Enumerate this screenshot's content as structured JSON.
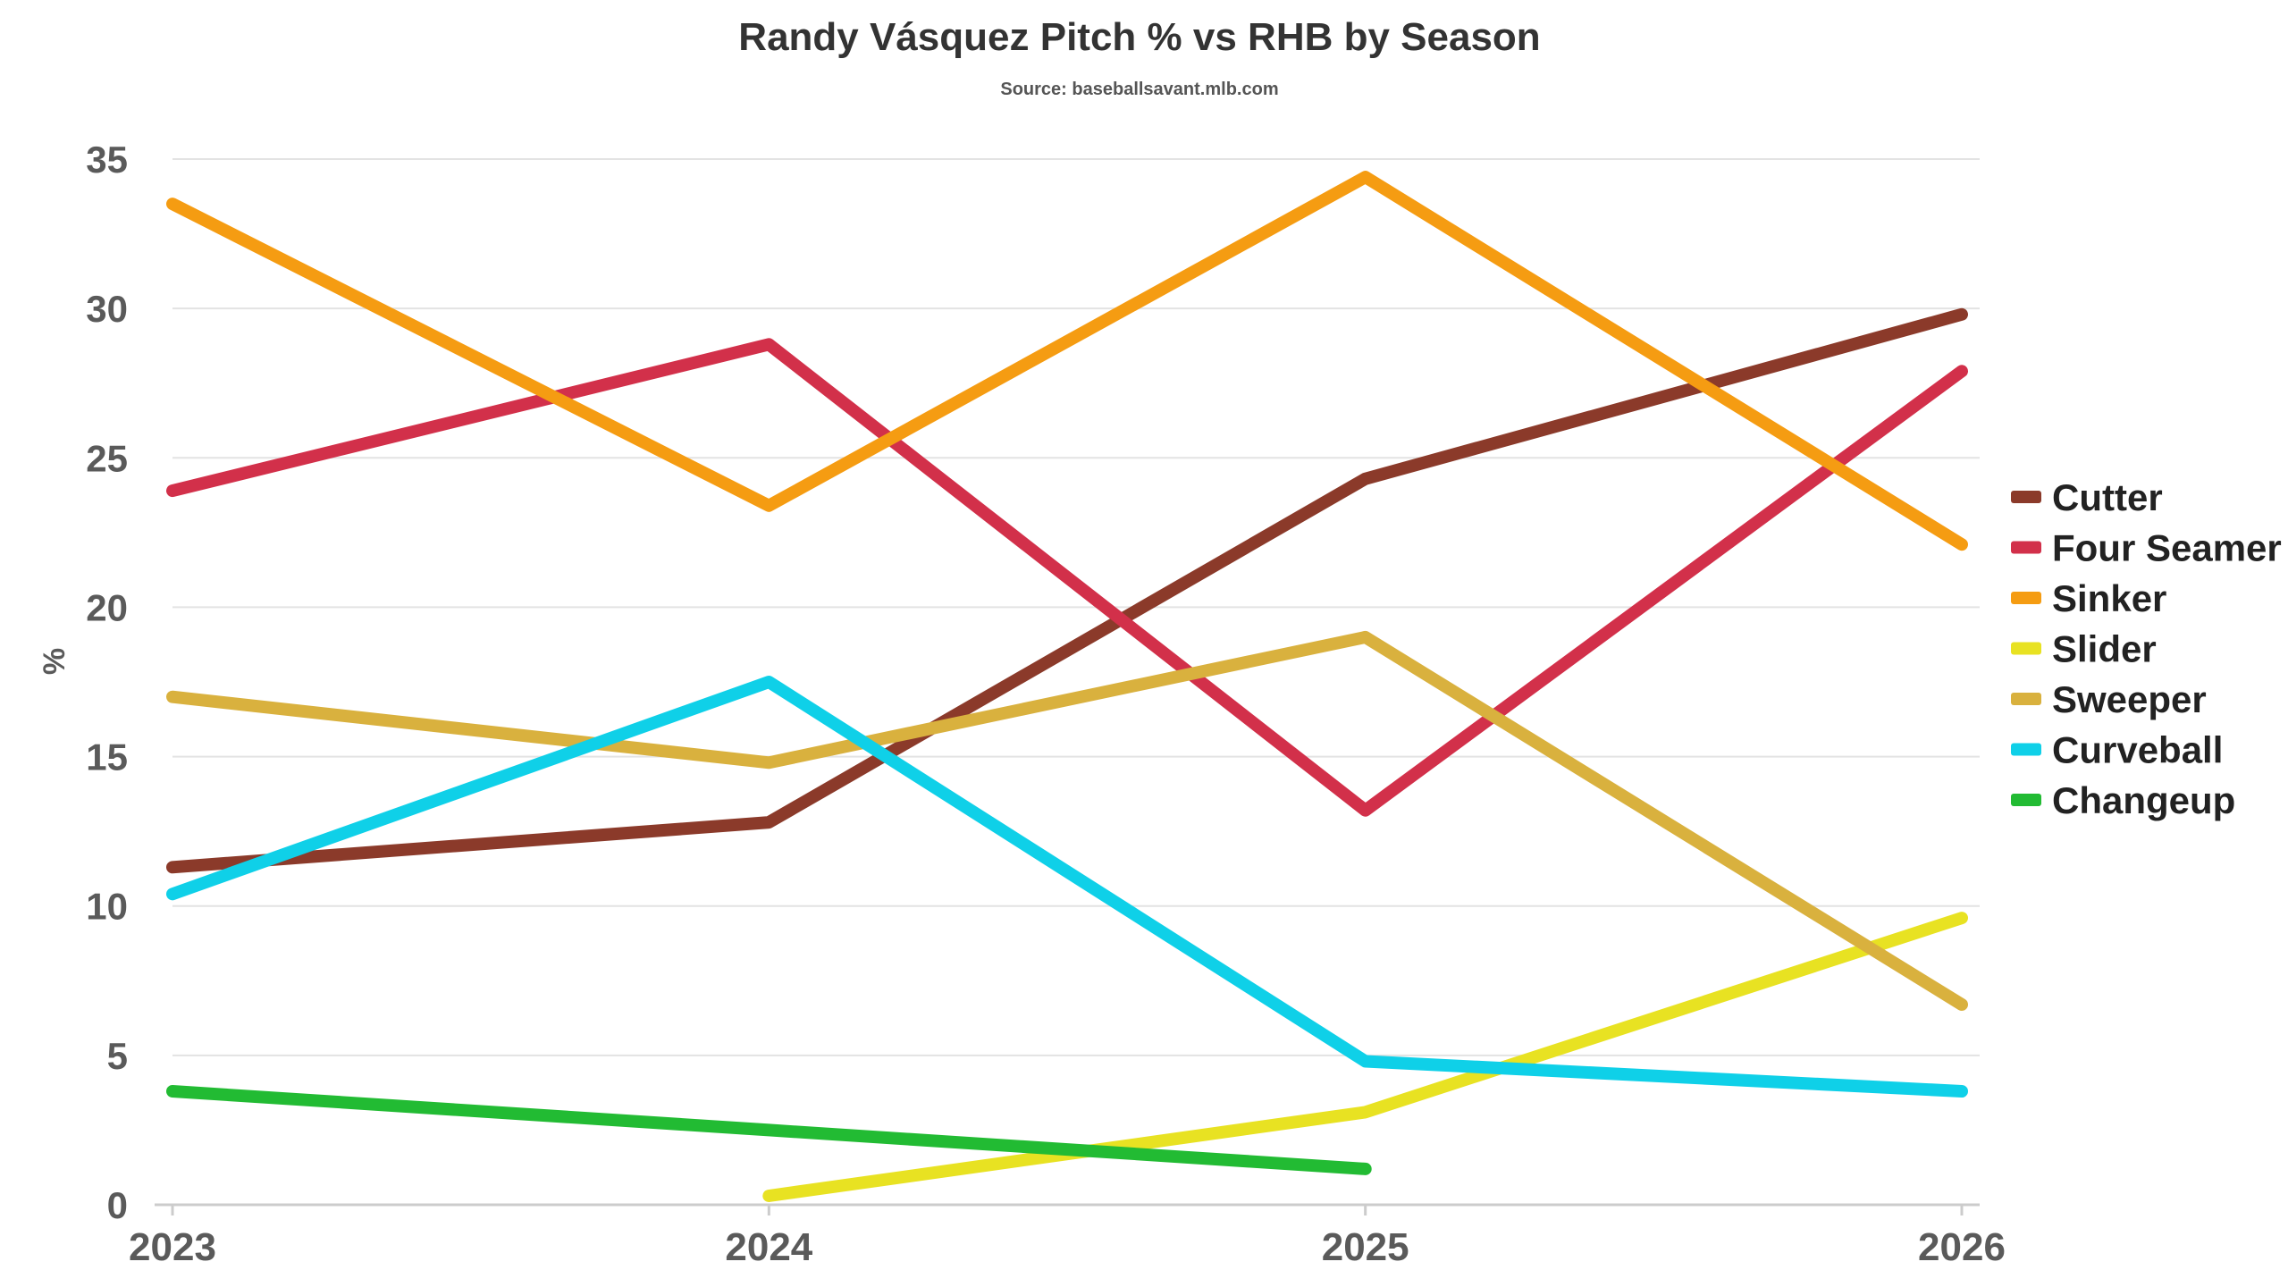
{
  "chart_data": {
    "type": "line",
    "title": "Randy Vásquez Pitch % vs RHB by Season",
    "subtitle": "Source: baseballsavant.mlb.com",
    "xlabel": "",
    "ylabel": "%",
    "x": [
      "2023",
      "2024",
      "2025",
      "2026"
    ],
    "ylim": [
      0,
      35
    ],
    "yticks": [
      0,
      5,
      10,
      15,
      20,
      25,
      30,
      35
    ],
    "grid": true,
    "legend_position": "right",
    "series": [
      {
        "name": "Cutter",
        "color": "#8b3a2a",
        "values": [
          11.3,
          12.8,
          24.3,
          29.8
        ]
      },
      {
        "name": "Four Seamer",
        "color": "#d2304a",
        "values": [
          23.9,
          28.8,
          13.2,
          27.9
        ]
      },
      {
        "name": "Sinker",
        "color": "#f59c12",
        "values": [
          33.5,
          23.4,
          34.4,
          22.1
        ]
      },
      {
        "name": "Slider",
        "color": "#e8e222",
        "values": [
          null,
          0.3,
          3.1,
          9.6
        ]
      },
      {
        "name": "Sweeper",
        "color": "#d9b13e",
        "values": [
          17.0,
          14.8,
          19.0,
          6.7
        ]
      },
      {
        "name": "Curveball",
        "color": "#0fd0e8",
        "values": [
          10.4,
          17.5,
          4.8,
          3.8
        ]
      },
      {
        "name": "Changeup",
        "color": "#22bb33",
        "values": [
          3.8,
          2.5,
          1.2,
          null
        ]
      }
    ]
  }
}
